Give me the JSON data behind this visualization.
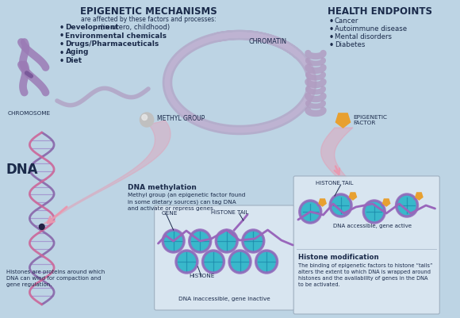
{
  "bg_color": "#bdd4e4",
  "title_epigenetic": "EPIGENETIC MECHANISMS",
  "subtitle_epigenetic": "are affected by these factors and processes:",
  "factors": [
    {
      "bold": "Development",
      "rest": " (in utero, childhood)"
    },
    {
      "bold": "Environmental chemicals",
      "rest": ""
    },
    {
      "bold": "Drugs/Pharmaceuticals",
      "rest": ""
    },
    {
      "bold": "Aging",
      "rest": ""
    },
    {
      "bold": "Diet",
      "rest": ""
    }
  ],
  "title_health": "HEALTH ENDPOINTS",
  "health_items": [
    "Cancer",
    "Autoimmune disease",
    "Mental disorders",
    "Diabetes"
  ],
  "label_chromosome": "CHROMOSOME",
  "label_methyl": "METHYL GROUP",
  "label_chromatin": "CHROMATIN",
  "label_dna": "DNA",
  "label_epigenetic_factor": "EPIGENETIC\nFACTOR",
  "label_histone_tail_left": "HISTONE TAIL",
  "label_histone_tail_right": "HISTONE TAIL",
  "label_gene": "GENE",
  "label_histone": "HISTONE",
  "label_dna_inactive": "DNA inaccessible, gene inactive",
  "label_dna_active": "DNA accessible, gene active",
  "dna_methylation_title": "DNA methylation",
  "dna_methylation_text": "Methyl group (an epigenetic factor found\nin some dietary sources) can tag DNA\nand activate or repress genes.",
  "histone_mod_title": "Histone modification",
  "histone_mod_text": "The binding of epigenetic factors to histone “tails”\nalters the extent to which DNA is wrapped around\nhistones and the availability of genes in the DNA\nto be activated.",
  "histones_text": "Histones are proteins around which\nDNA can wind for compaction and\ngene regulation.",
  "chromosome_color": "#9b7bb5",
  "chromosome_color2": "#7a5a9a",
  "dna_strand1_color": "#8866aa",
  "dna_strand2_color": "#cc6699",
  "chromatin_color": "#b09ac0",
  "chromatin_color2": "#9980b0",
  "histone_color": "#2bb5c8",
  "histone_line_color": "#1a88aa",
  "histone_wrap_color": "#9966bb",
  "arrow_color": "#e899b0",
  "epigenetic_factor_color": "#e8a030",
  "box_color": "#dce8f2",
  "box_border": "#99aabb",
  "text_color": "#1a2a4a",
  "methyl_color": "#c0c0c0",
  "methyl_shine": "#e8e8e8"
}
